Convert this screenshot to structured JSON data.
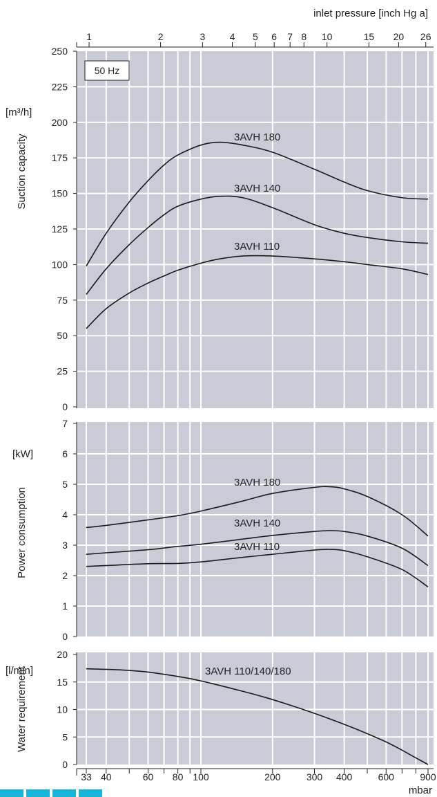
{
  "top_axis": {
    "title": "inlet pressure [inch Hg a]",
    "ticks": [
      {
        "label": "1",
        "mbar": 33.9
      },
      {
        "label": "2",
        "mbar": 67.7
      },
      {
        "label": "3",
        "mbar": 101.6
      },
      {
        "label": "4",
        "mbar": 135.5
      },
      {
        "label": "5",
        "mbar": 169.3
      },
      {
        "label": "6",
        "mbar": 203.2
      },
      {
        "label": "7",
        "mbar": 237.0
      },
      {
        "label": "8",
        "mbar": 270.9
      },
      {
        "label": "10",
        "mbar": 338.6
      },
      {
        "label": "15",
        "mbar": 508.0
      },
      {
        "label": "20",
        "mbar": 677.3
      },
      {
        "label": "26",
        "mbar": 880.5
      }
    ]
  },
  "bottom_axis": {
    "unit": "mbar",
    "ticks": [
      33,
      40,
      60,
      80,
      100,
      200,
      300,
      400,
      600,
      900
    ],
    "gridlines": [
      33,
      40,
      50,
      60,
      70,
      80,
      90,
      100,
      200,
      300,
      400,
      500,
      600,
      700,
      800,
      900
    ],
    "range": [
      33,
      900
    ],
    "scale": "log"
  },
  "colors": {
    "panel": "#c9cbd6",
    "grid": "#ffffff",
    "line": "#1a1a1a",
    "brand": "#19b5d8"
  },
  "chart_data": [
    {
      "type": "line",
      "ylabel": "Suction capacity",
      "yunit": "[m³/h]",
      "ylim": [
        0,
        250
      ],
      "yticks": [
        0,
        25,
        50,
        75,
        100,
        125,
        150,
        175,
        200,
        225,
        250
      ],
      "annotation": "50 Hz",
      "series": [
        {
          "name": "3AVH 180",
          "x": [
            33,
            40,
            50,
            60,
            70,
            80,
            100,
            120,
            150,
            200,
            300,
            400,
            500,
            700,
            900
          ],
          "y": [
            99,
            122,
            144,
            159,
            170,
            177,
            184,
            186,
            184,
            179,
            167,
            158,
            152,
            147,
            146
          ]
        },
        {
          "name": "3AVH 140",
          "x": [
            33,
            40,
            50,
            60,
            70,
            80,
            100,
            120,
            150,
            200,
            300,
            400,
            500,
            700,
            900
          ],
          "y": [
            79,
            97,
            114,
            126,
            135,
            141,
            146,
            148,
            147,
            140,
            128,
            122,
            119,
            116,
            115
          ]
        },
        {
          "name": "3AVH 110",
          "x": [
            33,
            40,
            50,
            60,
            70,
            80,
            100,
            120,
            150,
            200,
            300,
            400,
            500,
            700,
            900
          ],
          "y": [
            55,
            69,
            80,
            87,
            92,
            96,
            101,
            104,
            106,
            106,
            104,
            102,
            100,
            97,
            93
          ]
        }
      ]
    },
    {
      "type": "line",
      "ylabel": "Power consumption",
      "yunit": "[kW]",
      "ylim": [
        0,
        7
      ],
      "yticks": [
        0,
        1,
        2,
        3,
        4,
        5,
        6,
        7
      ],
      "series": [
        {
          "name": "3AVH 180",
          "x": [
            33,
            40,
            60,
            80,
            100,
            150,
            200,
            300,
            350,
            400,
            500,
            700,
            900
          ],
          "y": [
            3.58,
            3.65,
            3.83,
            3.97,
            4.12,
            4.45,
            4.7,
            4.9,
            4.92,
            4.85,
            4.6,
            4.0,
            3.3
          ]
        },
        {
          "name": "3AVH 140",
          "x": [
            33,
            40,
            60,
            80,
            100,
            150,
            200,
            300,
            350,
            400,
            500,
            700,
            900
          ],
          "y": [
            2.7,
            2.75,
            2.85,
            2.96,
            3.03,
            3.2,
            3.32,
            3.45,
            3.48,
            3.45,
            3.3,
            2.9,
            2.33
          ]
        },
        {
          "name": "3AVH 110",
          "x": [
            33,
            40,
            60,
            80,
            100,
            150,
            200,
            300,
            350,
            400,
            500,
            700,
            900
          ],
          "y": [
            2.3,
            2.33,
            2.39,
            2.4,
            2.45,
            2.6,
            2.7,
            2.84,
            2.86,
            2.82,
            2.62,
            2.2,
            1.63
          ]
        }
      ]
    },
    {
      "type": "line",
      "ylabel": "Water requirement",
      "yunit": "[l/min]",
      "ylim": [
        0,
        20
      ],
      "yticks": [
        0,
        5,
        10,
        15,
        20
      ],
      "series": [
        {
          "name": "3AVH 110/140/180",
          "x": [
            33,
            40,
            50,
            60,
            80,
            100,
            150,
            200,
            300,
            400,
            500,
            600,
            700,
            800,
            900
          ],
          "y": [
            17.4,
            17.3,
            17.1,
            16.8,
            16.0,
            15.2,
            13.3,
            11.8,
            9.3,
            7.3,
            5.6,
            4.1,
            2.6,
            1.2,
            0
          ]
        }
      ]
    }
  ]
}
